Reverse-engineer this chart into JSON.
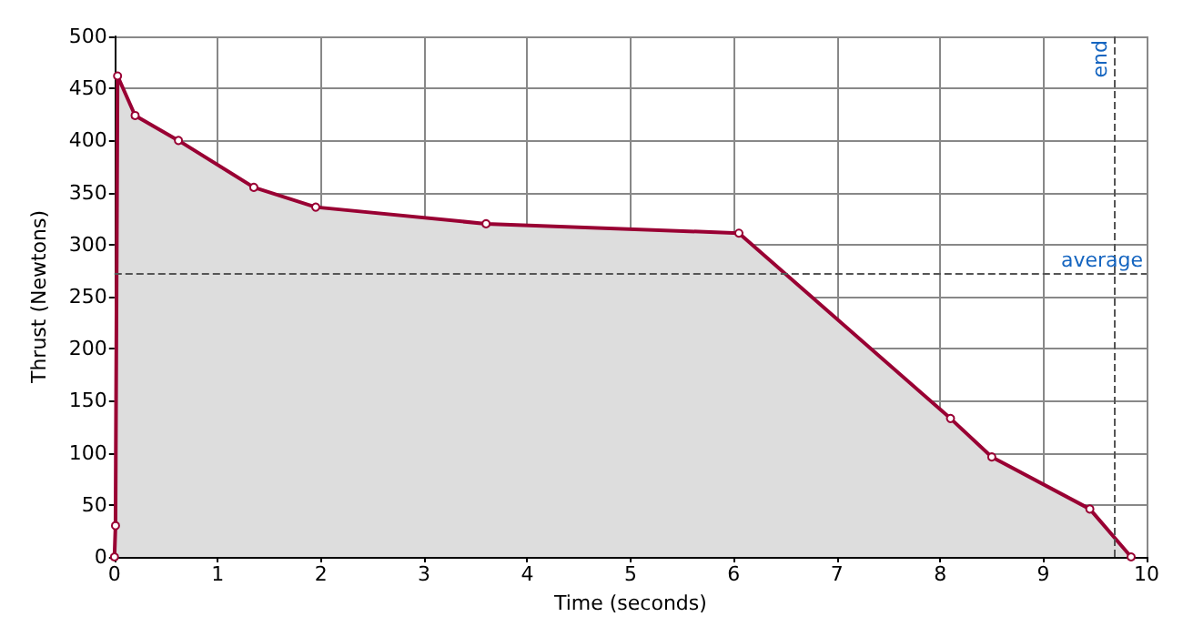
{
  "chart_data": {
    "type": "area",
    "xlabel": "Time (seconds)",
    "ylabel": "Thrust (Newtons)",
    "series": [
      {
        "color": "#990033",
        "x": [
          0,
          0.01,
          0.03,
          0.2,
          0.62,
          1.35,
          1.95,
          3.6,
          6.05,
          8.1,
          8.5,
          9.45,
          9.85
        ],
        "values": [
          0,
          30,
          462,
          424,
          400,
          355,
          336,
          320,
          311,
          133,
          96,
          46,
          0
        ]
      }
    ],
    "xlim": [
      0,
      10
    ],
    "xticks": [
      0,
      1,
      2,
      3,
      4,
      5,
      6,
      7,
      8,
      9,
      10
    ],
    "ylim": [
      0,
      500
    ],
    "yticks": [
      0,
      50,
      100,
      150,
      200,
      250,
      300,
      350,
      400,
      450,
      500
    ],
    "grid": true,
    "marker": "circle",
    "line_style": "solid",
    "ref_lines": [
      {
        "axis": "y",
        "value": 272,
        "label": "average",
        "color": "#555555",
        "line_style": "dashed"
      },
      {
        "axis": "x",
        "value": 9.68,
        "label": "end",
        "color": "#555555",
        "line_style": "dashed"
      }
    ]
  }
}
